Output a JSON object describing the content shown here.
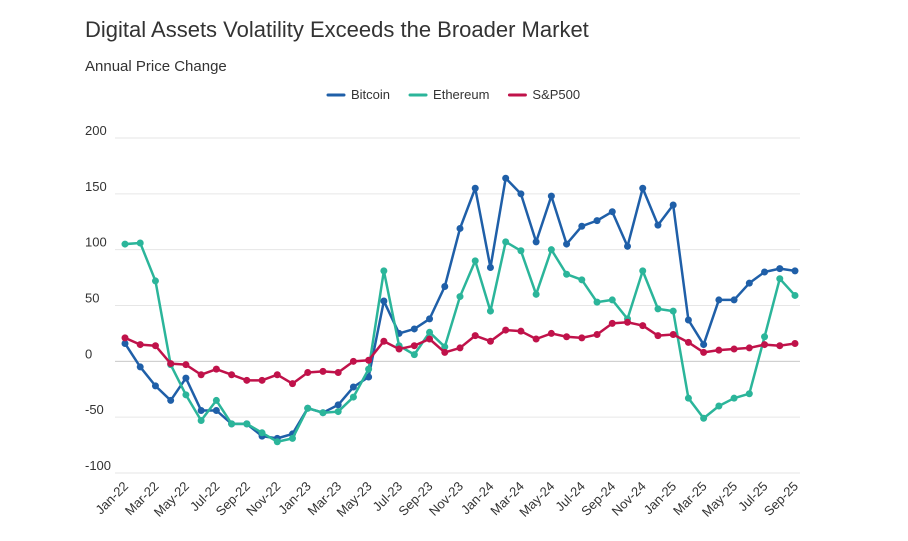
{
  "chart_data": {
    "type": "line",
    "title": "Digital Assets Volatility Exceeds the Broader Market",
    "subtitle": "Annual Price Change",
    "categories": [
      "Jan-22",
      null,
      "Mar-22",
      null,
      "May-22",
      null,
      "Jul-22",
      null,
      "Sep-22",
      null,
      "Nov-22",
      null,
      "Jan-23",
      null,
      "Mar-23",
      null,
      "May-23",
      null,
      "Jul-23",
      null,
      "Sep-23",
      null,
      "Nov-23",
      null,
      "Jan-24",
      null,
      "Mar-24",
      null,
      "May-24",
      null,
      "Jul-24",
      null,
      "Sep-24",
      null,
      "Nov-24",
      null,
      "Jan-25",
      null,
      "Mar-25",
      null,
      "May-25",
      null,
      "Jul-25",
      null,
      "Sep-25"
    ],
    "series": [
      {
        "name": "Bitcoin",
        "color": "#1f5fa8",
        "values": [
          16,
          -5,
          -22,
          -35,
          -15,
          -44,
          -44,
          -56,
          -56,
          -67,
          -69,
          -65,
          -42,
          -46,
          -39,
          -23,
          -14,
          54,
          25,
          29,
          38,
          67,
          119,
          155,
          84,
          164,
          150,
          107,
          148,
          105,
          121,
          126,
          134,
          103,
          155,
          122,
          140,
          37,
          15,
          55,
          55,
          70,
          80,
          83,
          81
        ]
      },
      {
        "name": "Ethereum",
        "color": "#2bb59a",
        "values": [
          105,
          106,
          72,
          -3,
          -30,
          -53,
          -35,
          -56,
          -56,
          -64,
          -72,
          -69,
          -42,
          -46,
          -45,
          -32,
          -7,
          81,
          14,
          6,
          26,
          13,
          58,
          90,
          45,
          107,
          99,
          60,
          100,
          78,
          73,
          53,
          55,
          38,
          81,
          47,
          45,
          -33,
          -51,
          -40,
          -33,
          -29,
          22,
          74,
          59
        ]
      },
      {
        "name": "S&P500",
        "color": "#c0124a",
        "values": [
          21,
          15,
          14,
          -2,
          -3,
          -12,
          -7,
          -12,
          -17,
          -17,
          -12,
          -20,
          -10,
          -9,
          -10,
          0,
          1,
          18,
          11,
          14,
          20,
          8,
          12,
          23,
          18,
          28,
          27,
          20,
          25,
          22,
          21,
          24,
          34,
          35,
          32,
          23,
          24,
          17,
          8,
          10,
          11,
          12,
          15,
          14,
          16
        ]
      }
    ],
    "ylim": [
      -100,
      200
    ],
    "yticks": [
      -100,
      -50,
      0,
      50,
      100,
      150,
      200
    ],
    "grid": true
  }
}
